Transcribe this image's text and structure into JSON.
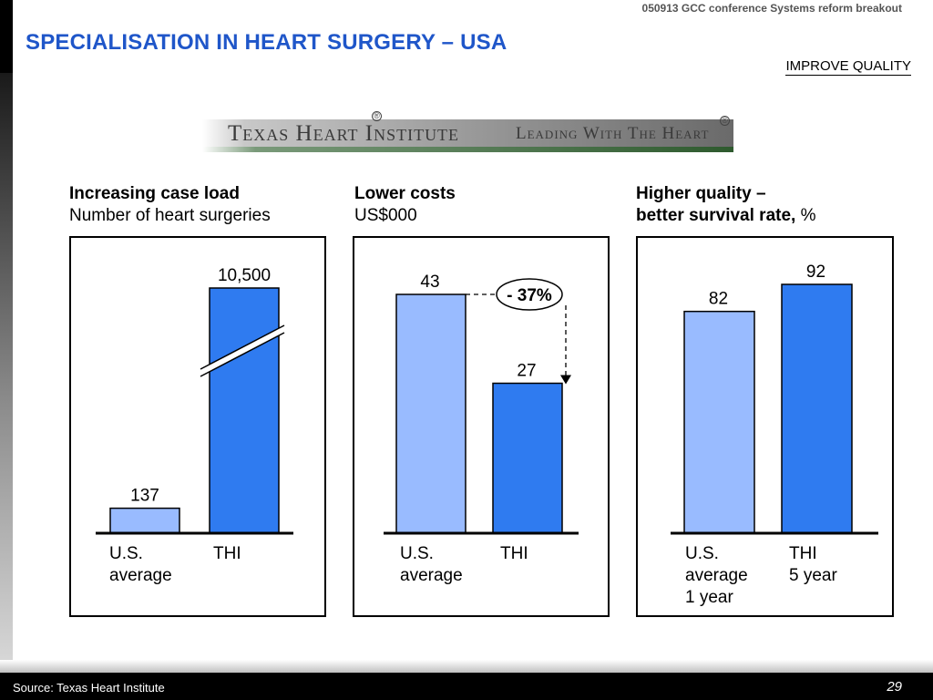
{
  "header": {
    "note": "050913 GCC conference Systems reform breakout",
    "title": "SPECIALISATION IN HEART SURGERY – USA",
    "tag": "IMPROVE QUALITY"
  },
  "logo": {
    "left_text": "Texas Heart Institute",
    "right_text": "Leading With The Heart",
    "reg_mark": "®"
  },
  "colors": {
    "us_bar": "#99bbff",
    "thi_bar": "#2f7bf0",
    "title": "#1f56c9"
  },
  "chart_data": [
    {
      "type": "bar",
      "title": "Increasing case load",
      "subtitle": "Number of heart surgeries",
      "categories": [
        "U.S.\naverage",
        "THI"
      ],
      "category_lines": [
        [
          "U.S.",
          "average"
        ],
        [
          "THI"
        ]
      ],
      "values": [
        137,
        10500
      ],
      "value_labels": [
        "137",
        "10,500"
      ],
      "axis_break": true,
      "legend": "none",
      "grid": false
    },
    {
      "type": "bar",
      "title": "Lower costs",
      "subtitle": "US$000",
      "categories": [
        "U.S.\naverage",
        "THI"
      ],
      "category_lines": [
        [
          "U.S.",
          "average"
        ],
        [
          "THI"
        ]
      ],
      "values": [
        43,
        27
      ],
      "value_labels": [
        "43",
        "27"
      ],
      "ylim": [
        0,
        43
      ],
      "annotation": "- 37%",
      "legend": "none",
      "grid": false
    },
    {
      "type": "bar",
      "title": "Higher quality –",
      "title_line2": "better survival rate,",
      "unit": " %",
      "categories": [
        "U.S.\naverage\n1 year",
        "THI\n5 year"
      ],
      "category_lines": [
        [
          "U.S.",
          "average",
          "1 year"
        ],
        [
          "THI",
          "5 year"
        ]
      ],
      "values": [
        82,
        92
      ],
      "value_labels": [
        "82",
        "92"
      ],
      "ylim": [
        0,
        92
      ],
      "legend": "none",
      "grid": false
    }
  ],
  "footer": {
    "source": "Source: Texas Heart Institute",
    "page": "29"
  }
}
